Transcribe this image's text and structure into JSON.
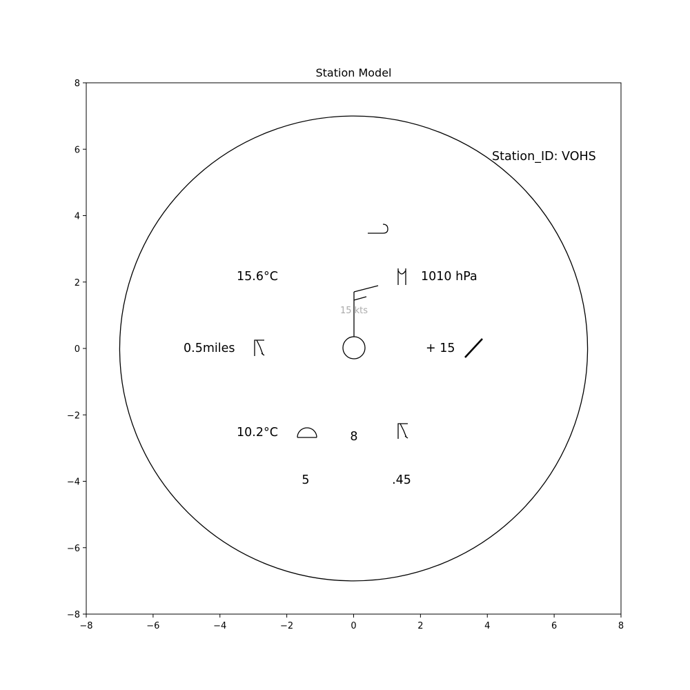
{
  "chart_data": {
    "type": "station-model",
    "title": "Station Model",
    "xlim": [
      -8,
      8
    ],
    "ylim": [
      -8,
      8
    ],
    "xticks": [
      "−8",
      "−6",
      "−4",
      "−2",
      "0",
      "2",
      "4",
      "6",
      "8"
    ],
    "yticks": [
      "−8",
      "−6",
      "−4",
      "−2",
      "0",
      "2",
      "4",
      "6",
      "8"
    ],
    "station_id": "Station_ID: VOHS",
    "temperature": "15.6°C",
    "pressure": "1010 hPa",
    "visibility": "0.5miles",
    "pressure_tendency": "+ 15",
    "dewpoint": "10.2°C",
    "low_cloud_amount": "8",
    "cloud_base_height": "5",
    "precipitation": ".45",
    "wind_speed": "15 kts",
    "wind_speed_value_kts": 15,
    "wind_direction_deg": 15,
    "outer_circle_radius": 7,
    "symbols": {
      "high_cloud": "cirrus-hook-icon",
      "middle_cloud": "altocumulus-icon",
      "present_weather": "thunderstorm-icon",
      "pressure_tendency_trend": "rising-line-icon",
      "low_cloud": "cumulus-dome-icon",
      "past_weather": "thunderstorm-icon",
      "sky_cover": "clear-sky-circle-icon"
    }
  }
}
